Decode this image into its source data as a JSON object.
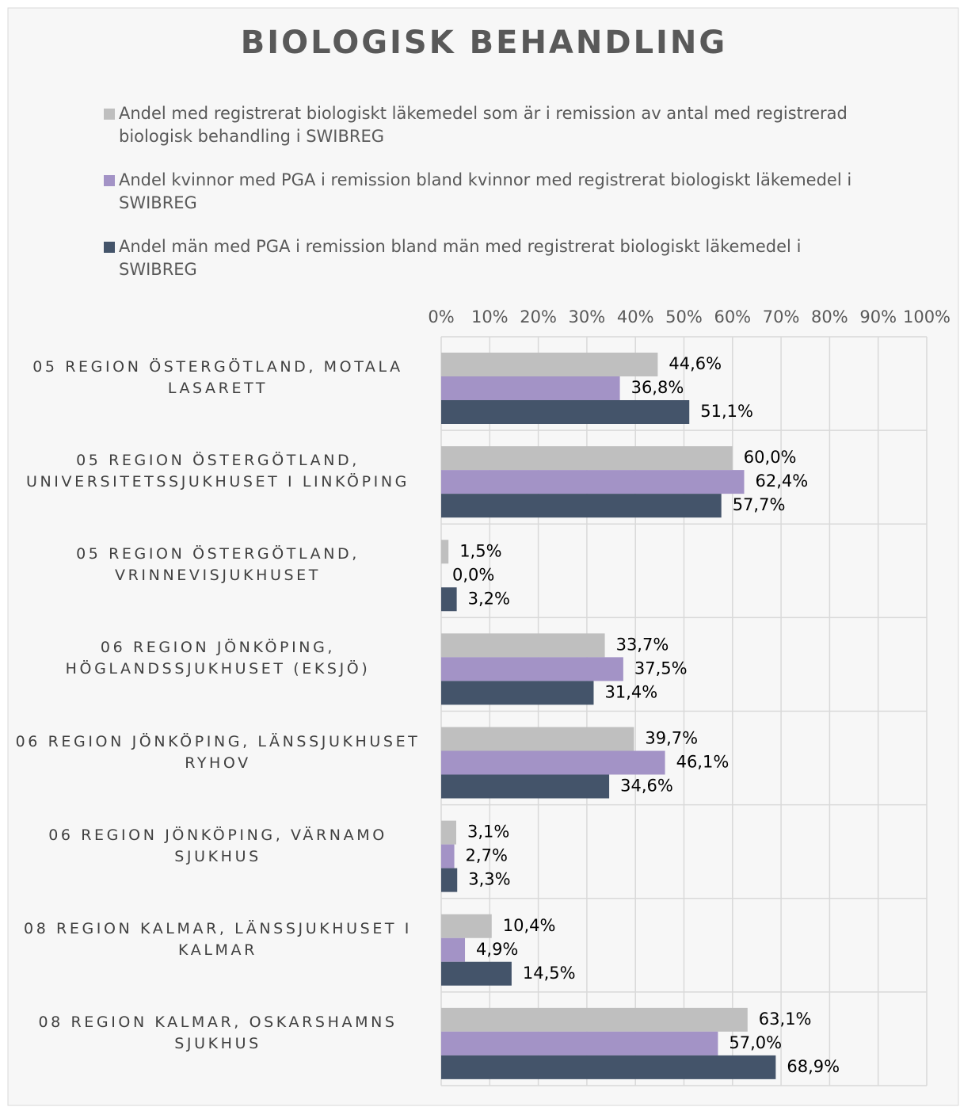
{
  "chart_data": {
    "type": "hbar",
    "title": "BIOLOGISK BEHANDLING",
    "categories": [
      "05 REGION ÖSTERGÖTLAND, MOTALA LASARETT",
      "05 REGION ÖSTERGÖTLAND, UNIVERSITETSSJUKHUSET I LINKÖPING",
      "05 REGION ÖSTERGÖTLAND, VRINNEVISJUKHUSET",
      "06 REGION JÖNKÖPING, HÖGLANDSSJUKHUSET (EKSJÖ)",
      "06 REGION JÖNKÖPING, LÄNSSJUKHUSET RYHOV",
      "06 REGION JÖNKÖPING, VÄRNAMO SJUKHUS",
      "08 REGION KALMAR, LÄNSSJUKHUSET I KALMAR",
      "08 REGION KALMAR, OSKARSHAMNS SJUKHUS"
    ],
    "series": [
      {
        "name": "Andel med registrerat biologiskt läkemedel som är i remission av antal med registrerad biologisk behandling i SWIBREG",
        "color": "#bfbfbf",
        "values": [
          44.6,
          60.0,
          1.5,
          33.7,
          39.7,
          3.1,
          10.4,
          63.1
        ],
        "value_labels": [
          "44,6%",
          "60,0%",
          "1,5%",
          "33,7%",
          "39,7%",
          "3,1%",
          "10,4%",
          "63,1%"
        ]
      },
      {
        "name": "Andel kvinnor med PGA i remission bland kvinnor med registrerat biologiskt läkemedel i SWIBREG",
        "color": "#a393c6",
        "values": [
          36.8,
          62.4,
          0.0,
          37.5,
          46.1,
          2.7,
          4.9,
          57.0
        ],
        "value_labels": [
          "36,8%",
          "62,4%",
          "0,0%",
          "37,5%",
          "46,1%",
          "2,7%",
          "4,9%",
          "57,0%"
        ]
      },
      {
        "name": "Andel män med PGA i remission bland män med registrerat biologiskt läkemedel i SWIBREG",
        "color": "#44546a",
        "values": [
          51.1,
          57.7,
          3.2,
          31.4,
          34.6,
          3.3,
          14.5,
          68.9
        ],
        "value_labels": [
          "51,1%",
          "57,7%",
          "3,2%",
          "31,4%",
          "34,6%",
          "3,3%",
          "14,5%",
          "68,9%"
        ]
      }
    ],
    "xlim": [
      0,
      100
    ],
    "xticks": [
      {
        "value": 0,
        "label": "0%"
      },
      {
        "value": 10,
        "label": "10%"
      },
      {
        "value": 20,
        "label": "20%"
      },
      {
        "value": 30,
        "label": "30%"
      },
      {
        "value": 40,
        "label": "40%"
      },
      {
        "value": 50,
        "label": "50%"
      },
      {
        "value": 60,
        "label": "60%"
      },
      {
        "value": 70,
        "label": "70%"
      },
      {
        "value": 80,
        "label": "80%"
      },
      {
        "value": 90,
        "label": "90%"
      },
      {
        "value": 100,
        "label": "100%"
      }
    ],
    "grid": true,
    "legend": "top"
  }
}
